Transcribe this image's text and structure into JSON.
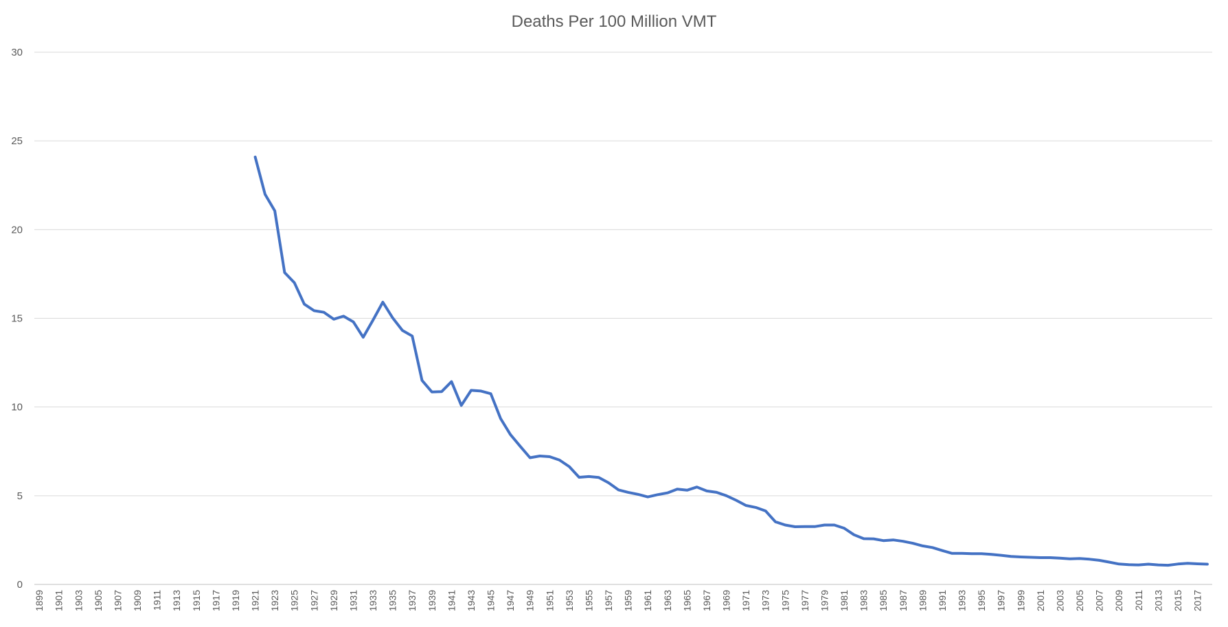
{
  "chart_data": {
    "type": "line",
    "title": "Deaths Per 100 Million VMT",
    "xlabel": "",
    "ylabel": "",
    "ylim": [
      0,
      30
    ],
    "yticks": [
      0,
      5,
      10,
      15,
      20,
      25,
      30
    ],
    "xlim": [
      1899,
      2018
    ],
    "xtick_labels": [
      "1899",
      "1901",
      "1903",
      "1905",
      "1907",
      "1909",
      "1911",
      "1913",
      "1915",
      "1917",
      "1919",
      "1921",
      "1923",
      "1925",
      "1927",
      "1929",
      "1931",
      "1933",
      "1935",
      "1937",
      "1939",
      "1941",
      "1943",
      "1945",
      "1947",
      "1949",
      "1951",
      "1953",
      "1955",
      "1957",
      "1959",
      "1961",
      "1963",
      "1965",
      "1967",
      "1969",
      "1971",
      "1973",
      "1975",
      "1977",
      "1979",
      "1981",
      "1983",
      "1985",
      "1987",
      "1989",
      "1991",
      "1993",
      "1995",
      "1997",
      "1999",
      "2001",
      "2003",
      "2005",
      "2007",
      "2009",
      "2011",
      "2013",
      "2015",
      "2017"
    ],
    "grid": true,
    "legend": "none",
    "series": [
      {
        "color": "#4472C4",
        "x": [
          1921,
          1922,
          1923,
          1924,
          1925,
          1926,
          1927,
          1928,
          1929,
          1930,
          1931,
          1932,
          1933,
          1934,
          1935,
          1936,
          1937,
          1938,
          1939,
          1940,
          1941,
          1942,
          1943,
          1944,
          1945,
          1946,
          1947,
          1948,
          1949,
          1950,
          1951,
          1952,
          1953,
          1954,
          1955,
          1956,
          1957,
          1958,
          1959,
          1960,
          1961,
          1962,
          1963,
          1964,
          1965,
          1966,
          1967,
          1968,
          1969,
          1970,
          1971,
          1972,
          1973,
          1974,
          1975,
          1976,
          1977,
          1978,
          1979,
          1980,
          1981,
          1982,
          1983,
          1984,
          1985,
          1986,
          1987,
          1988,
          1989,
          1990,
          1991,
          1992,
          1993,
          1994,
          1995,
          1996,
          1997,
          1998,
          1999,
          2000,
          2001,
          2002,
          2003,
          2004,
          2005,
          2006,
          2007,
          2008,
          2009,
          2010,
          2011,
          2012,
          2013,
          2014,
          2015,
          2016,
          2017,
          2018
        ],
        "values": [
          24.09,
          21.99,
          21.06,
          17.58,
          17.0,
          15.8,
          15.43,
          15.34,
          14.95,
          15.12,
          14.8,
          13.93,
          14.9,
          15.91,
          15.03,
          14.32,
          14.0,
          11.5,
          10.85,
          10.87,
          11.43,
          10.09,
          10.94,
          10.9,
          10.75,
          9.35,
          8.45,
          7.79,
          7.14,
          7.24,
          7.2,
          7.01,
          6.64,
          6.04,
          6.08,
          6.03,
          5.73,
          5.33,
          5.19,
          5.08,
          4.93,
          5.06,
          5.16,
          5.37,
          5.31,
          5.49,
          5.27,
          5.19,
          5.0,
          4.74,
          4.45,
          4.34,
          4.14,
          3.53,
          3.35,
          3.25,
          3.26,
          3.26,
          3.35,
          3.35,
          3.17,
          2.8,
          2.58,
          2.57,
          2.47,
          2.51,
          2.43,
          2.32,
          2.17,
          2.08,
          1.91,
          1.75,
          1.75,
          1.73,
          1.73,
          1.69,
          1.64,
          1.58,
          1.55,
          1.53,
          1.51,
          1.51,
          1.48,
          1.44,
          1.46,
          1.42,
          1.36,
          1.26,
          1.15,
          1.11,
          1.1,
          1.14,
          1.1,
          1.08,
          1.15,
          1.19,
          1.16,
          1.14
        ]
      }
    ]
  }
}
